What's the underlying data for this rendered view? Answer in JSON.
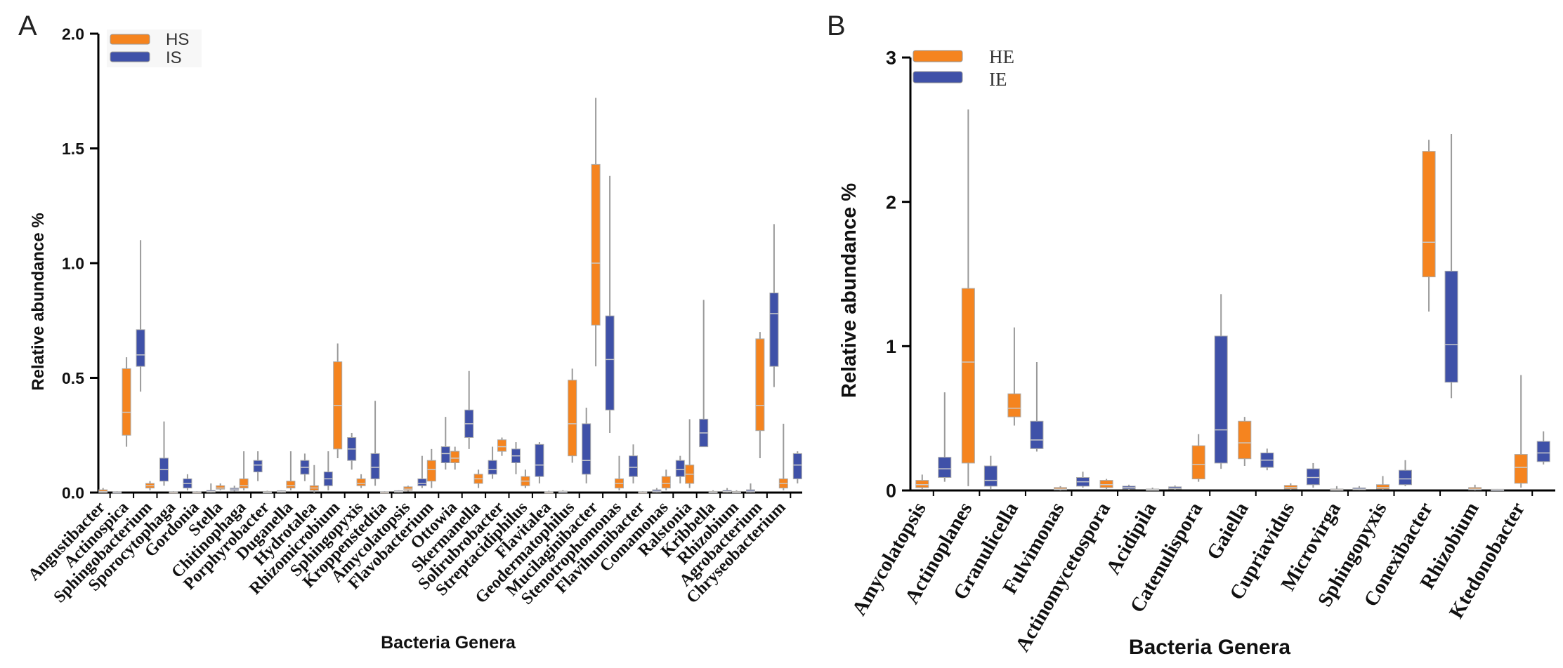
{
  "colors": {
    "series_1": "#F5841F",
    "series_2": "#3F51A8",
    "whisker": "#9a9a9a",
    "median": "#c9c9c9",
    "axis": "#000000"
  },
  "chart_data": [
    {
      "panel_label": "A",
      "type": "box",
      "xlabel": "Bacteria Genera",
      "ylabel": "Relative abundance %",
      "ylim": [
        0,
        2.0
      ],
      "yticks": [
        "0.0",
        "0.5",
        "1.0",
        "1.5",
        "2.0"
      ],
      "series_names": [
        "HS",
        "IS"
      ],
      "categories": [
        {
          "name": "Angustibacter",
          "HS": [
            0,
            0,
            0.004,
            0.012,
            0.02
          ],
          "IS": [
            0,
            0,
            0.002,
            0.004,
            0.006
          ]
        },
        {
          "name": "Actinospica",
          "HS": [
            0.2,
            0.25,
            0.35,
            0.54,
            0.59
          ],
          "IS": [
            0.44,
            0.55,
            0.6,
            0.71,
            1.1
          ]
        },
        {
          "name": "Sphingobacterium",
          "HS": [
            0.01,
            0.02,
            0.03,
            0.04,
            0.05
          ],
          "IS": [
            0.03,
            0.05,
            0.1,
            0.15,
            0.31
          ]
        },
        {
          "name": "Sporocytophaga",
          "HS": [
            0,
            0,
            0.002,
            0.004,
            0.006
          ],
          "IS": [
            0.01,
            0.02,
            0.04,
            0.06,
            0.08
          ]
        },
        {
          "name": "Gordonia",
          "HS": [
            0,
            0,
            0.002,
            0.004,
            0.006
          ],
          "IS": [
            0,
            0.002,
            0.005,
            0.01,
            0.04
          ]
        },
        {
          "name": "Stella",
          "HS": [
            0.01,
            0.015,
            0.02,
            0.03,
            0.04
          ],
          "IS": [
            0.005,
            0.01,
            0.015,
            0.02,
            0.03
          ]
        },
        {
          "name": "Chitinophaga",
          "HS": [
            0.01,
            0.02,
            0.03,
            0.06,
            0.18
          ],
          "IS": [
            0.05,
            0.09,
            0.12,
            0.14,
            0.18
          ]
        },
        {
          "name": "Porphyrobacter",
          "HS": [
            0,
            0,
            0.002,
            0.005,
            0.008
          ],
          "IS": [
            0,
            0.002,
            0.004,
            0.008,
            0.01
          ]
        },
        {
          "name": "Duganella",
          "HS": [
            0.01,
            0.02,
            0.03,
            0.05,
            0.18
          ],
          "IS": [
            0.05,
            0.08,
            0.11,
            0.14,
            0.17
          ]
        },
        {
          "name": "Hydrotalea",
          "HS": [
            0,
            0.01,
            0.02,
            0.03,
            0.12
          ],
          "IS": [
            0.01,
            0.03,
            0.06,
            0.09,
            0.18
          ]
        },
        {
          "name": "Rhizomicrobium",
          "HS": [
            0.15,
            0.19,
            0.38,
            0.57,
            0.65
          ],
          "IS": [
            0.1,
            0.14,
            0.19,
            0.24,
            0.26
          ]
        },
        {
          "name": "Sphingopyxis",
          "HS": [
            0.02,
            0.03,
            0.04,
            0.06,
            0.08
          ],
          "IS": [
            0.03,
            0.06,
            0.11,
            0.17,
            0.4
          ]
        },
        {
          "name": "Kroppenstedtia",
          "HS": [
            0,
            0,
            0.002,
            0.004,
            0.006
          ],
          "IS": [
            0,
            0.002,
            0.004,
            0.008,
            0.01
          ]
        },
        {
          "name": "Amycolatopsis",
          "HS": [
            0.005,
            0.01,
            0.015,
            0.025,
            0.03
          ],
          "IS": [
            0.02,
            0.03,
            0.04,
            0.06,
            0.16
          ]
        },
        {
          "name": "Flavobacterium",
          "HS": [
            0.02,
            0.05,
            0.1,
            0.14,
            0.19
          ],
          "IS": [
            0.1,
            0.13,
            0.17,
            0.2,
            0.33
          ]
        },
        {
          "name": "Ottowia",
          "HS": [
            0.1,
            0.13,
            0.15,
            0.18,
            0.2
          ],
          "IS": [
            0.19,
            0.24,
            0.3,
            0.36,
            0.53
          ]
        },
        {
          "name": "Skermanella",
          "HS": [
            0.02,
            0.04,
            0.06,
            0.08,
            0.1
          ],
          "IS": [
            0.06,
            0.08,
            0.1,
            0.14,
            0.2
          ]
        },
        {
          "name": "Solirubrobacter",
          "HS": [
            0.16,
            0.18,
            0.2,
            0.23,
            0.24
          ],
          "IS": [
            0.08,
            0.13,
            0.16,
            0.19,
            0.22
          ]
        },
        {
          "name": "Streptacidiphilus",
          "HS": [
            0.02,
            0.03,
            0.05,
            0.07,
            0.1
          ],
          "IS": [
            0.04,
            0.07,
            0.12,
            0.21,
            0.22
          ]
        },
        {
          "name": "Flavitalea",
          "HS": [
            0,
            0,
            0.002,
            0.004,
            0.008
          ],
          "IS": [
            0,
            0.002,
            0.004,
            0.006,
            0.01
          ]
        },
        {
          "name": "Geodermatophilus",
          "HS": [
            0.13,
            0.16,
            0.3,
            0.49,
            0.54
          ],
          "IS": [
            0.04,
            0.08,
            0.14,
            0.3,
            0.37
          ]
        },
        {
          "name": "Mucilaginibacter",
          "HS": [
            0.55,
            0.73,
            1.0,
            1.43,
            1.72
          ],
          "IS": [
            0.26,
            0.36,
            0.58,
            0.77,
            1.38
          ]
        },
        {
          "name": "Stenotrophomonas",
          "HS": [
            0.01,
            0.02,
            0.04,
            0.06,
            0.16
          ],
          "IS": [
            0.04,
            0.07,
            0.11,
            0.16,
            0.21
          ]
        },
        {
          "name": "Flavihumibacter",
          "HS": [
            0,
            0,
            0.002,
            0.004,
            0.006
          ],
          "IS": [
            0,
            0.002,
            0.006,
            0.012,
            0.02
          ]
        },
        {
          "name": "Comamonas",
          "HS": [
            0.01,
            0.02,
            0.04,
            0.07,
            0.1
          ],
          "IS": [
            0.04,
            0.07,
            0.1,
            0.14,
            0.16
          ]
        },
        {
          "name": "Ralstonia",
          "HS": [
            0.02,
            0.04,
            0.08,
            0.12,
            0.32
          ],
          "IS": [
            0.2,
            0.2,
            0.26,
            0.32,
            0.84
          ]
        },
        {
          "name": "Kribbella",
          "HS": [
            0,
            0,
            0.002,
            0.005,
            0.01
          ],
          "IS": [
            0,
            0.002,
            0.005,
            0.01,
            0.02
          ]
        },
        {
          "name": "Rhizobium",
          "HS": [
            0,
            0,
            0.002,
            0.005,
            0.01
          ],
          "IS": [
            0,
            0.002,
            0.006,
            0.012,
            0.04
          ]
        },
        {
          "name": "Agrobacterium",
          "HS": [
            0.15,
            0.27,
            0.38,
            0.67,
            0.7
          ],
          "IS": [
            0.46,
            0.55,
            0.78,
            0.87,
            1.17
          ]
        },
        {
          "name": "Chryseobacterium",
          "HS": [
            0.01,
            0.02,
            0.04,
            0.06,
            0.3
          ],
          "IS": [
            0.04,
            0.06,
            0.12,
            0.17,
            0.18
          ]
        }
      ]
    },
    {
      "panel_label": "B",
      "type": "box",
      "xlabel": "Bacteria Genera",
      "ylabel": "Relative abundance %",
      "ylim": [
        0,
        3
      ],
      "yticks": [
        "0",
        "1",
        "2",
        "3"
      ],
      "series_names": [
        "HE",
        "IE"
      ],
      "categories": [
        {
          "name": "Amycolatopsis",
          "HE": [
            0.01,
            0.02,
            0.04,
            0.07,
            0.11
          ],
          "IE": [
            0.06,
            0.09,
            0.15,
            0.23,
            0.68
          ]
        },
        {
          "name": "Actinoplanes",
          "HE": [
            0.03,
            0.19,
            0.89,
            1.4,
            2.64
          ],
          "IE": [
            0.01,
            0.03,
            0.07,
            0.17,
            0.24
          ]
        },
        {
          "name": "Granulicella",
          "HE": [
            0.45,
            0.51,
            0.57,
            0.67,
            1.13
          ],
          "IE": [
            0.27,
            0.29,
            0.35,
            0.48,
            0.89
          ]
        },
        {
          "name": "Fulvimonas",
          "HE": [
            0,
            0.005,
            0.01,
            0.02,
            0.03
          ],
          "IE": [
            0.02,
            0.03,
            0.06,
            0.09,
            0.13
          ]
        },
        {
          "name": "Actinomycetospora",
          "HE": [
            0.01,
            0.02,
            0.04,
            0.07,
            0.08
          ],
          "IE": [
            0.005,
            0.01,
            0.02,
            0.03,
            0.04
          ]
        },
        {
          "name": "Acidipila",
          "HE": [
            0,
            0.003,
            0.006,
            0.01,
            0.02
          ],
          "IE": [
            0.005,
            0.01,
            0.015,
            0.025,
            0.035
          ]
        },
        {
          "name": "Catenulispora",
          "HE": [
            0.06,
            0.08,
            0.18,
            0.31,
            0.39
          ],
          "IE": [
            0.15,
            0.19,
            0.42,
            1.07,
            1.36
          ]
        },
        {
          "name": "Gaiella",
          "HE": [
            0.17,
            0.22,
            0.33,
            0.48,
            0.51
          ],
          "IE": [
            0.14,
            0.16,
            0.21,
            0.26,
            0.29
          ]
        },
        {
          "name": "Cupriavidus",
          "HE": [
            0.005,
            0.01,
            0.02,
            0.035,
            0.05
          ],
          "IE": [
            0.02,
            0.04,
            0.09,
            0.15,
            0.19
          ]
        },
        {
          "name": "Microvirga",
          "HE": [
            0,
            0.002,
            0.005,
            0.01,
            0.03
          ],
          "IE": [
            0.002,
            0.005,
            0.01,
            0.018,
            0.03
          ]
        },
        {
          "name": "Sphingopyxis",
          "HE": [
            0.005,
            0.01,
            0.02,
            0.04,
            0.1
          ],
          "IE": [
            0.03,
            0.04,
            0.08,
            0.14,
            0.21
          ]
        },
        {
          "name": "Conexibacter",
          "HE": [
            1.24,
            1.48,
            1.72,
            2.35,
            2.43
          ],
          "IE": [
            0.64,
            0.75,
            1.01,
            1.52,
            2.47
          ]
        },
        {
          "name": "Rhizobium",
          "HE": [
            0,
            0.005,
            0.01,
            0.02,
            0.04
          ],
          "IE": [
            0,
            0.002,
            0.005,
            0.008,
            0.01
          ]
        },
        {
          "name": "Ktedonobacter",
          "HE": [
            0.02,
            0.05,
            0.16,
            0.25,
            0.8
          ],
          "IE": [
            0.18,
            0.2,
            0.26,
            0.34,
            0.41
          ]
        }
      ]
    }
  ]
}
